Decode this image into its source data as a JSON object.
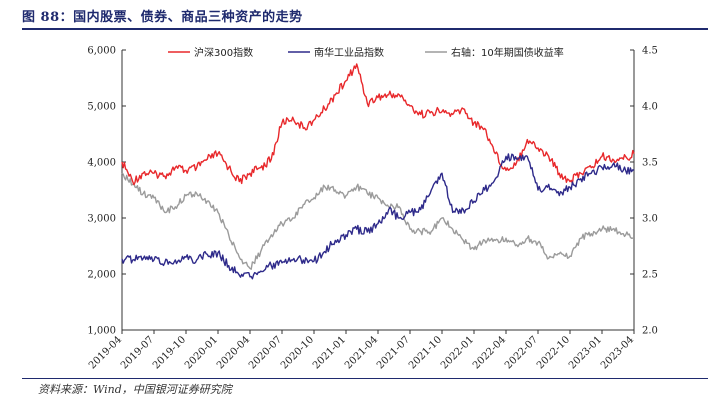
{
  "header": {
    "title": "图 88：国内股票、债券、商品三种资产的走势"
  },
  "footer": {
    "source": "资料来源：Wind，中国银河证券研究院"
  },
  "colors": {
    "title": "#1f2a6e",
    "hs300": "#e8282b",
    "industrial": "#2e2a8a",
    "yield": "#9b9b9b",
    "axis": "#333333"
  },
  "chart_data": {
    "type": "line",
    "legend_position": "top",
    "grid": false,
    "x_range": [
      "2019-04",
      "2023-04"
    ],
    "x_ticks": [
      "2019-04",
      "2019-07",
      "2019-10",
      "2020-01",
      "2020-04",
      "2020-07",
      "2020-10",
      "2021-01",
      "2021-04",
      "2021-07",
      "2021-10",
      "2022-01",
      "2022-04",
      "2022-07",
      "2022-10",
      "2023-01",
      "2023-04"
    ],
    "y_left": {
      "range": [
        1000,
        6000
      ],
      "ticks": [
        "1,000",
        "2,000",
        "3,000",
        "4,000",
        "5,000",
        "6,000"
      ]
    },
    "y_right": {
      "range": [
        2.0,
        4.5
      ],
      "ticks": [
        "2.0",
        "2.5",
        "3.0",
        "3.5",
        "4.0",
        "4.5"
      ]
    },
    "series": [
      {
        "name": "沪深300指数",
        "axis": "left",
        "points": [
          [
            "2019-04",
            4000
          ],
          [
            "2019-05",
            3650
          ],
          [
            "2019-06",
            3800
          ],
          [
            "2019-07",
            3800
          ],
          [
            "2019-08",
            3750
          ],
          [
            "2019-09",
            3900
          ],
          [
            "2019-10",
            3850
          ],
          [
            "2019-11",
            3900
          ],
          [
            "2019-12",
            4050
          ],
          [
            "2020-01",
            4150
          ],
          [
            "2020-02",
            3900
          ],
          [
            "2020-03",
            3650
          ],
          [
            "2020-04",
            3800
          ],
          [
            "2020-05",
            3900
          ],
          [
            "2020-06",
            4050
          ],
          [
            "2020-07",
            4700
          ],
          [
            "2020-08",
            4800
          ],
          [
            "2020-09",
            4600
          ],
          [
            "2020-10",
            4750
          ],
          [
            "2020-11",
            4950
          ],
          [
            "2020-12",
            5200
          ],
          [
            "2021-01",
            5450
          ],
          [
            "2021-02",
            5750
          ],
          [
            "2021-03",
            5050
          ],
          [
            "2021-04",
            5150
          ],
          [
            "2021-05",
            5200
          ],
          [
            "2021-06",
            5200
          ],
          [
            "2021-07",
            5000
          ],
          [
            "2021-08",
            4850
          ],
          [
            "2021-09",
            4900
          ],
          [
            "2021-10",
            4900
          ],
          [
            "2021-11",
            4850
          ],
          [
            "2021-12",
            4950
          ],
          [
            "2022-01",
            4700
          ],
          [
            "2022-02",
            4600
          ],
          [
            "2022-03",
            4150
          ],
          [
            "2022-04",
            3850
          ],
          [
            "2022-05",
            4000
          ],
          [
            "2022-06",
            4400
          ],
          [
            "2022-07",
            4250
          ],
          [
            "2022-08",
            4100
          ],
          [
            "2022-09",
            3800
          ],
          [
            "2022-10",
            3650
          ],
          [
            "2022-11",
            3800
          ],
          [
            "2022-12",
            3900
          ],
          [
            "2023-01",
            4100
          ],
          [
            "2023-02",
            4050
          ],
          [
            "2023-03",
            4050
          ],
          [
            "2023-04",
            4150
          ]
        ]
      },
      {
        "name": "南华工业品指数",
        "axis": "left",
        "points": [
          [
            "2019-04",
            2270
          ],
          [
            "2019-05",
            2250
          ],
          [
            "2019-06",
            2280
          ],
          [
            "2019-07",
            2250
          ],
          [
            "2019-08",
            2200
          ],
          [
            "2019-09",
            2250
          ],
          [
            "2019-10",
            2300
          ],
          [
            "2019-11",
            2250
          ],
          [
            "2019-12",
            2350
          ],
          [
            "2020-01",
            2380
          ],
          [
            "2020-02",
            2150
          ],
          [
            "2020-03",
            1980
          ],
          [
            "2020-04",
            1950
          ],
          [
            "2020-05",
            2050
          ],
          [
            "2020-06",
            2150
          ],
          [
            "2020-07",
            2200
          ],
          [
            "2020-08",
            2250
          ],
          [
            "2020-09",
            2250
          ],
          [
            "2020-10",
            2230
          ],
          [
            "2020-11",
            2400
          ],
          [
            "2020-12",
            2600
          ],
          [
            "2021-01",
            2700
          ],
          [
            "2021-02",
            2800
          ],
          [
            "2021-03",
            2750
          ],
          [
            "2021-04",
            2900
          ],
          [
            "2021-05",
            3150
          ],
          [
            "2021-06",
            3000
          ],
          [
            "2021-07",
            3100
          ],
          [
            "2021-08",
            3150
          ],
          [
            "2021-09",
            3500
          ],
          [
            "2021-10",
            3800
          ],
          [
            "2021-11",
            3100
          ],
          [
            "2021-12",
            3150
          ],
          [
            "2022-01",
            3300
          ],
          [
            "2022-02",
            3500
          ],
          [
            "2022-03",
            3700
          ],
          [
            "2022-04",
            4100
          ],
          [
            "2022-05",
            4050
          ],
          [
            "2022-06",
            4100
          ],
          [
            "2022-07",
            3500
          ],
          [
            "2022-08",
            3600
          ],
          [
            "2022-09",
            3400
          ],
          [
            "2022-10",
            3550
          ],
          [
            "2022-11",
            3700
          ],
          [
            "2022-12",
            3800
          ],
          [
            "2023-01",
            3900
          ],
          [
            "2023-02",
            3950
          ],
          [
            "2023-03",
            3850
          ],
          [
            "2023-04",
            3850
          ]
        ]
      },
      {
        "name": "右轴：10年期国债收益率",
        "axis": "right",
        "points": [
          [
            "2019-04",
            3.4
          ],
          [
            "2019-05",
            3.3
          ],
          [
            "2019-06",
            3.22
          ],
          [
            "2019-07",
            3.18
          ],
          [
            "2019-08",
            3.05
          ],
          [
            "2019-09",
            3.1
          ],
          [
            "2019-10",
            3.2
          ],
          [
            "2019-11",
            3.22
          ],
          [
            "2019-12",
            3.15
          ],
          [
            "2020-01",
            3.05
          ],
          [
            "2020-02",
            2.85
          ],
          [
            "2020-03",
            2.65
          ],
          [
            "2020-04",
            2.55
          ],
          [
            "2020-05",
            2.7
          ],
          [
            "2020-06",
            2.85
          ],
          [
            "2020-07",
            2.95
          ],
          [
            "2020-08",
            3.0
          ],
          [
            "2020-09",
            3.12
          ],
          [
            "2020-10",
            3.18
          ],
          [
            "2020-11",
            3.28
          ],
          [
            "2020-12",
            3.25
          ],
          [
            "2021-01",
            3.2
          ],
          [
            "2021-02",
            3.28
          ],
          [
            "2021-03",
            3.22
          ],
          [
            "2021-04",
            3.18
          ],
          [
            "2021-05",
            3.1
          ],
          [
            "2021-06",
            3.1
          ],
          [
            "2021-07",
            2.9
          ],
          [
            "2021-08",
            2.88
          ],
          [
            "2021-09",
            2.88
          ],
          [
            "2021-10",
            3.0
          ],
          [
            "2021-11",
            2.9
          ],
          [
            "2021-12",
            2.8
          ],
          [
            "2022-01",
            2.72
          ],
          [
            "2022-02",
            2.8
          ],
          [
            "2022-03",
            2.8
          ],
          [
            "2022-04",
            2.82
          ],
          [
            "2022-05",
            2.76
          ],
          [
            "2022-06",
            2.82
          ],
          [
            "2022-07",
            2.78
          ],
          [
            "2022-08",
            2.64
          ],
          [
            "2022-09",
            2.68
          ],
          [
            "2022-10",
            2.66
          ],
          [
            "2022-11",
            2.82
          ],
          [
            "2022-12",
            2.86
          ],
          [
            "2023-01",
            2.9
          ],
          [
            "2023-02",
            2.9
          ],
          [
            "2023-03",
            2.86
          ],
          [
            "2023-04",
            2.82
          ]
        ]
      }
    ]
  }
}
